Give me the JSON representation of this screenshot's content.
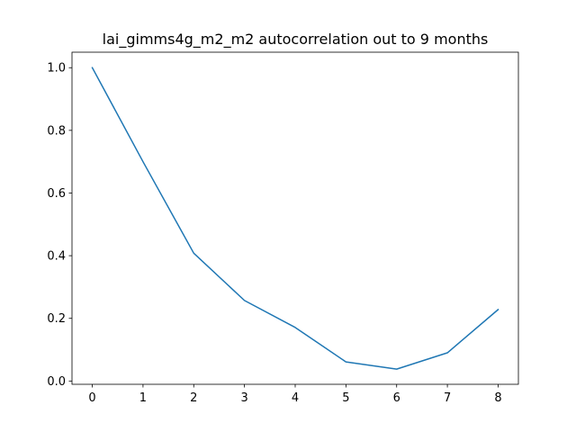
{
  "chart_data": {
    "type": "line",
    "title": "lai_gimms4g_m2_m2 autocorrelation out to 9 months",
    "xlabel": "",
    "ylabel": "",
    "x": [
      0,
      1,
      2,
      3,
      4,
      5,
      6,
      7,
      8
    ],
    "series": [
      {
        "color": "#1f77b4",
        "values": [
          1.0,
          0.7,
          0.408,
          0.257,
          0.171,
          0.061,
          0.038,
          0.09,
          0.228
        ]
      }
    ],
    "xticks": [
      "0",
      "1",
      "2",
      "3",
      "4",
      "5",
      "6",
      "7",
      "8"
    ],
    "yticks": [
      "0.0",
      "0.2",
      "0.4",
      "0.6",
      "0.8",
      "1.0"
    ],
    "xlim": [
      -0.4,
      8.4
    ],
    "ylim": [
      -0.0105,
      1.0495
    ],
    "grid": false,
    "legend": "none"
  }
}
